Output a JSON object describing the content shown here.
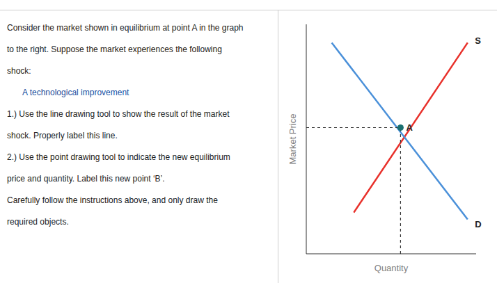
{
  "chart_data": {
    "type": "line",
    "xlabel": "Quantity",
    "ylabel": "Market Price",
    "xlim": [
      0,
      10
    ],
    "ylim": [
      0,
      10
    ],
    "tick_labels": false,
    "grid": false,
    "series": [
      {
        "type": "line",
        "color": "#e8302a",
        "x": [
          2.8,
          9.5
        ],
        "values": [
          1.8,
          9.2
        ]
      },
      {
        "type": "line",
        "color": "#4a90d9",
        "x": [
          1.5,
          9.5
        ],
        "values": [
          9.2,
          1.5
        ]
      },
      {
        "type": "line",
        "color": "#333333",
        "line_style": "dotted",
        "x": [
          0,
          5.55
        ],
        "values": [
          5.5,
          5.5
        ]
      },
      {
        "type": "line",
        "color": "#333333",
        "line_style": "dotted",
        "x": [
          5.55,
          5.55
        ],
        "values": [
          0,
          5.5
        ]
      },
      {
        "type": "scatter",
        "color": "#1a7070",
        "x": [
          5.55
        ],
        "values": [
          5.5
        ]
      }
    ],
    "annotations": [
      {
        "text": "A",
        "x": 5.55,
        "y": 5.5
      },
      {
        "text": "S",
        "x": 9.6,
        "y": 9.3
      },
      {
        "text": "D",
        "x": 9.6,
        "y": 1.3
      }
    ],
    "panel_text": [
      {
        "text": "Consider the market shown in equilibrium at point A in the graph"
      },
      {
        "text": "to the right.  Suppose the market experiences the following"
      },
      {
        "text": "shock:"
      },
      {
        "text": "A technological improvement",
        "color": "#1a4fa0"
      },
      {
        "text": "1.)  Use the line drawing tool to show the result of the market"
      },
      {
        "text": "shock.  Properly label this line."
      },
      {
        "text": "2.)  Use the point drawing tool to indicate the new equilibrium"
      },
      {
        "text": "price and quantity. Label this new point ‘B’."
      },
      {
        "text": "Carefully follow the instructions above, and only draw the"
      },
      {
        "text": "required objects."
      }
    ]
  }
}
